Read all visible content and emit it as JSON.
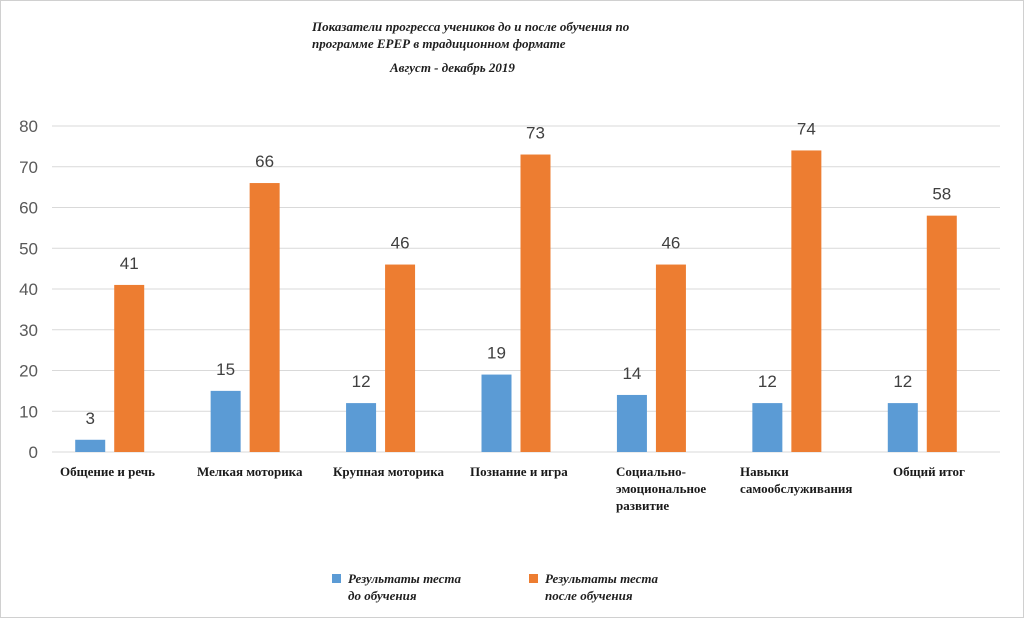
{
  "chart_data": {
    "type": "bar",
    "title_line1": "Показатели прогресса учеников до и после обучения по",
    "title_line2": "программе ЕРЕР  в традиционном формате",
    "subtitle": "Август - декабрь 2019",
    "categories": [
      "Общение и речь",
      "Мелкая моторика",
      "Крупная моторика",
      "Познание и игра",
      "Социально-эмоциональное развитие",
      "Навыки самообслуживания",
      "Общий итог"
    ],
    "category_lines": [
      [
        "Общение и речь"
      ],
      [
        "Мелкая моторика"
      ],
      [
        "Крупная моторика"
      ],
      [
        "Познание и игра"
      ],
      [
        "Социально-",
        "эмоциональное",
        "развитие"
      ],
      [
        "Навыки",
        "самообслуживания"
      ],
      [
        "Общий итог"
      ]
    ],
    "series": [
      {
        "name": "Результаты теста до обучения",
        "name_lines": [
          "Результаты теста",
          "до обучения"
        ],
        "color": "#5b9bd5",
        "values": [
          3,
          15,
          12,
          19,
          14,
          12,
          12
        ]
      },
      {
        "name": "Результаты теста после обучения",
        "name_lines": [
          "Результаты теста",
          "после обучения"
        ],
        "color": "#ed7d31",
        "values": [
          41,
          66,
          46,
          73,
          46,
          74,
          58
        ]
      }
    ],
    "ylim": [
      0,
      80
    ],
    "yticks": [
      0,
      10,
      20,
      30,
      40,
      50,
      60,
      70,
      80
    ],
    "grid": true,
    "legend_position": "bottom"
  }
}
